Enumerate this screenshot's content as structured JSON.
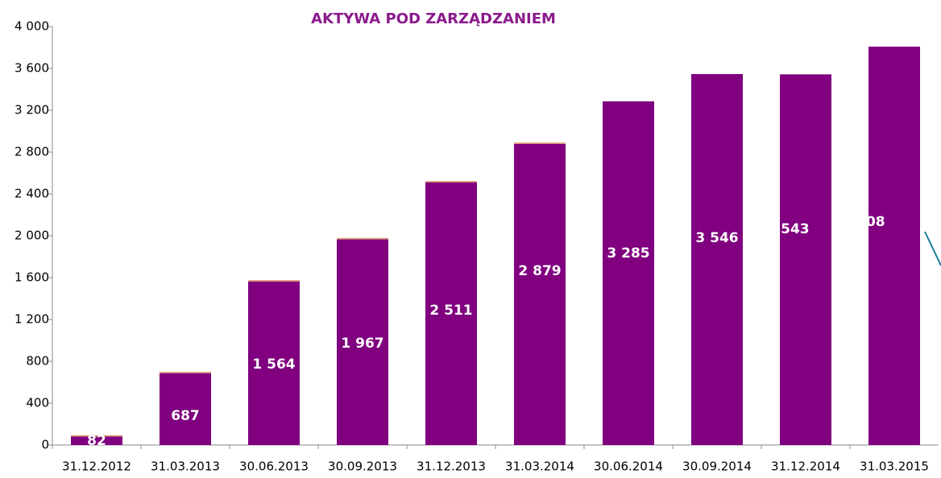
{
  "chart_data": {
    "type": "bar",
    "title": "AKTYWA POD ZARZĄDZANIEM",
    "categories": [
      "31.12.2012",
      "31.03.2013",
      "30.06.2013",
      "30.09.2013",
      "31.12.2013",
      "31.03.2014",
      "30.06.2014",
      "30.09.2014",
      "31.12.2014",
      "31.03.2015"
    ],
    "series": [
      {
        "color": "#800080",
        "values": [
          82,
          687,
          1564,
          1967,
          2511,
          2879,
          3285,
          3546,
          3543,
          3808
        ],
        "value_labels": [
          "82",
          "687",
          "1 564",
          "1 967",
          "2 511",
          "2 879",
          "3 285",
          "3 546",
          "3 543",
          "3 808"
        ]
      },
      {
        "color": "#e0a070",
        "values": [
          12,
          12,
          12,
          12,
          12,
          12,
          0,
          0,
          0,
          0
        ]
      }
    ],
    "ylim": [
      0,
      4000
    ],
    "yticks": [
      0,
      400,
      800,
      {
        "value": 1200,
        "label": "1 200"
      },
      {
        "value": 1600,
        "label": "1 600"
      },
      {
        "value": 2000,
        "label": "2 000"
      },
      {
        "value": 2400,
        "label": "2 400"
      },
      {
        "value": 2800,
        "label": "2 800"
      },
      {
        "value": 3200,
        "label": "3 200"
      },
      {
        "value": 3600,
        "label": "3 600"
      },
      {
        "value": 4000,
        "label": "4 000"
      }
    ]
  }
}
